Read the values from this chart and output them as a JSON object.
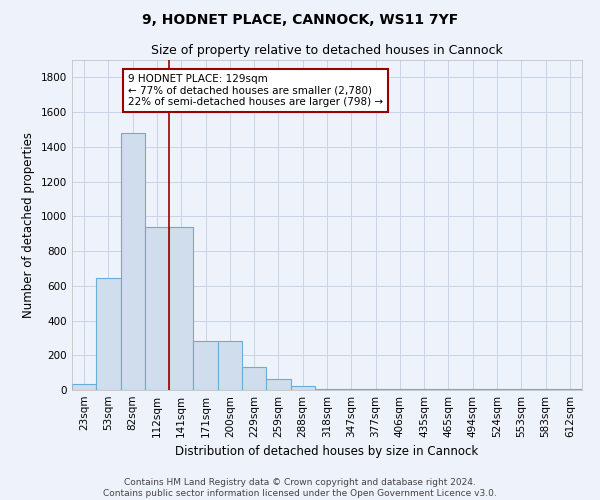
{
  "title": "9, HODNET PLACE, CANNOCK, WS11 7YF",
  "subtitle": "Size of property relative to detached houses in Cannock",
  "xlabel": "Distribution of detached houses by size in Cannock",
  "ylabel": "Number of detached properties",
  "bin_labels": [
    "23sqm",
    "53sqm",
    "82sqm",
    "112sqm",
    "141sqm",
    "171sqm",
    "200sqm",
    "229sqm",
    "259sqm",
    "288sqm",
    "318sqm",
    "347sqm",
    "377sqm",
    "406sqm",
    "435sqm",
    "465sqm",
    "494sqm",
    "524sqm",
    "553sqm",
    "583sqm",
    "612sqm"
  ],
  "bar_heights": [
    35,
    645,
    1480,
    940,
    940,
    285,
    285,
    130,
    65,
    25,
    5,
    5,
    5,
    5,
    5,
    5,
    5,
    5,
    5,
    5,
    5
  ],
  "bar_color": "#cfdded",
  "bar_edge_color": "#6aaed6",
  "grid_color": "#c8d4e8",
  "background_color": "#eef2fa",
  "property_line_color": "#990000",
  "annotation_text": "9 HODNET PLACE: 129sqm\n← 77% of detached houses are smaller (2,780)\n22% of semi-detached houses are larger (798) →",
  "annotation_box_color": "#ffffff",
  "annotation_box_edge": "#990000",
  "ylim": [
    0,
    1900
  ],
  "yticks": [
    0,
    200,
    400,
    600,
    800,
    1000,
    1200,
    1400,
    1600,
    1800
  ],
  "footer_text": "Contains HM Land Registry data © Crown copyright and database right 2024.\nContains public sector information licensed under the Open Government Licence v3.0.",
  "title_fontsize": 10,
  "subtitle_fontsize": 9,
  "axis_label_fontsize": 8.5,
  "tick_fontsize": 7.5,
  "annotation_fontsize": 7.5,
  "footer_fontsize": 6.5
}
